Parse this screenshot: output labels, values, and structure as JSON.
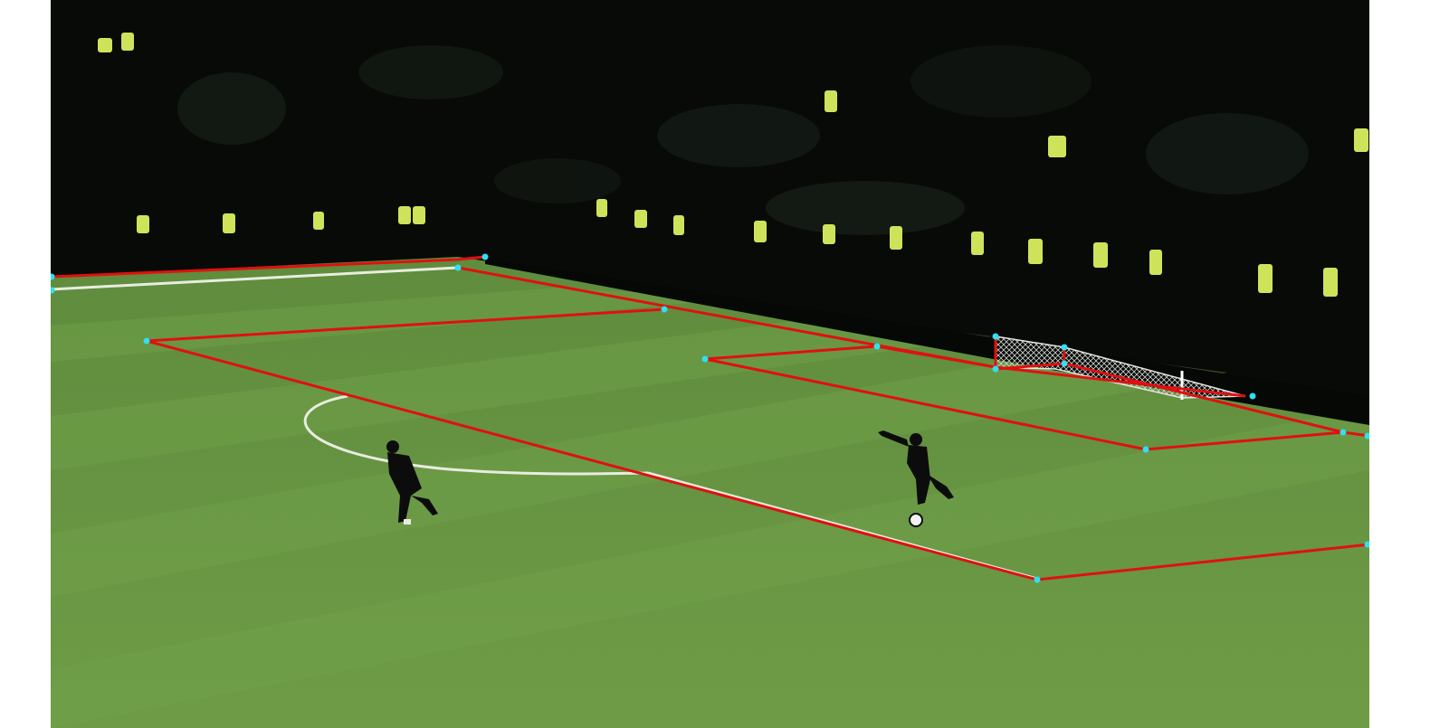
{
  "image": {
    "subject": "football-pitch-penalty-area-keypoint-overlay",
    "colors": {
      "page_background": "#ffffff",
      "stands": "#070a07",
      "pitch_light": "#6a9a45",
      "pitch_dark": "#5b8a3a",
      "field_lines": "#e8ecdf",
      "overlay_lines": "#e01010",
      "keypoints": "#2fe0f0",
      "steward_vests": "#cfe35a",
      "players": "#0c0c0c"
    }
  },
  "overlay": {
    "line_color": "#e01010",
    "keypoint_color": "#2fe0f0"
  }
}
